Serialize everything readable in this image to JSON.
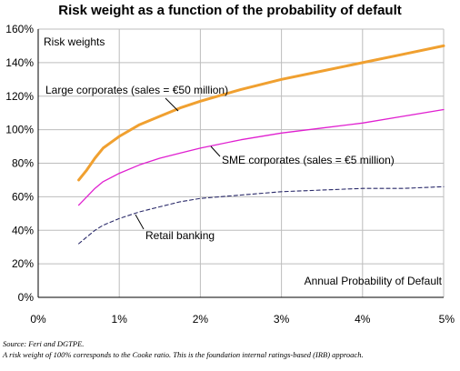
{
  "title": "Risk weight as a function of the probability of default",
  "footnotes": {
    "source": "Source: Feri and DGTPE.",
    "note": "A risk weight of 100% corresponds to the Cooke ratio. This is the foundation internal ratings-based (IRB) approach."
  },
  "chart_data": {
    "type": "line",
    "title": "Risk weight as a function of the probability of default",
    "xlabel": "Annual Probability of Default",
    "ylabel": "Risk weights",
    "xlim": [
      0,
      5
    ],
    "ylim": [
      0,
      160
    ],
    "x_ticks": [
      "0%",
      "1%",
      "2%",
      "3%",
      "4%",
      "5%"
    ],
    "y_ticks": [
      "0%",
      "20%",
      "40%",
      "60%",
      "80%",
      "100%",
      "120%",
      "140%",
      "160%"
    ],
    "grid": true,
    "series": [
      {
        "name": "Large corporates (sales = €50 million)",
        "color": "#F0A030",
        "style": "solid",
        "x": [
          0.5,
          0.6,
          0.7,
          0.8,
          1.0,
          1.25,
          1.5,
          1.75,
          2.0,
          2.5,
          3.0,
          3.5,
          4.0,
          4.5,
          5.0
        ],
        "y": [
          70,
          76,
          83,
          89,
          96,
          103,
          108,
          113,
          117,
          124,
          130,
          135,
          140,
          145,
          150
        ]
      },
      {
        "name": "SME corporates (sales = €5 million)",
        "color": "#E020D0",
        "style": "solid",
        "x": [
          0.5,
          0.6,
          0.7,
          0.8,
          1.0,
          1.25,
          1.5,
          1.75,
          2.0,
          2.5,
          3.0,
          3.5,
          4.0,
          4.5,
          5.0
        ],
        "y": [
          55,
          60,
          65,
          69,
          74,
          79,
          83,
          86,
          89,
          94,
          98,
          101,
          104,
          108,
          112
        ]
      },
      {
        "name": "Retail banking",
        "color": "#2A2A6A",
        "style": "dashed",
        "x": [
          0.5,
          0.6,
          0.7,
          0.8,
          1.0,
          1.25,
          1.5,
          1.75,
          2.0,
          2.5,
          3.0,
          3.5,
          4.0,
          4.5,
          5.0
        ],
        "y": [
          32,
          36,
          40,
          43,
          47,
          51,
          54,
          57,
          59,
          61,
          63,
          64,
          65,
          65,
          66
        ]
      }
    ]
  }
}
